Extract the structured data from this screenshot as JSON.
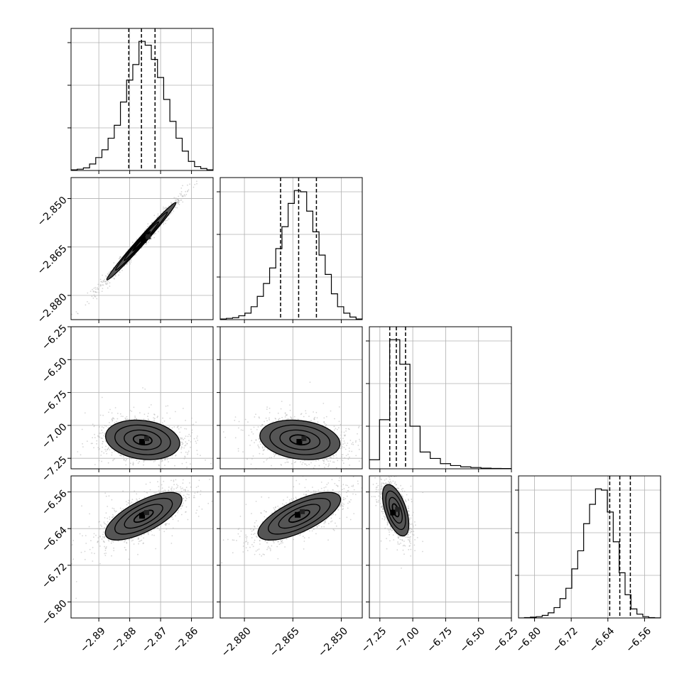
{
  "chart_data": {
    "type": "corner",
    "params": [
      {
        "range": [
          -2.899,
          -2.853
        ],
        "ticks": [
          -2.89,
          -2.88,
          -2.87,
          -2.86
        ],
        "tick_labels": [
          "−2.89",
          "−2.88",
          "−2.87",
          "−2.86"
        ],
        "quantiles": [
          -2.8803,
          -2.8762,
          -2.8718
        ],
        "hist": [
          0.5,
          1,
          2,
          5,
          10,
          16,
          25,
          35,
          53,
          70,
          82,
          100,
          97,
          86,
          72,
          55,
          38,
          25,
          15,
          7,
          3,
          1.5,
          0.5
        ]
      },
      {
        "range": [
          -2.8875,
          -2.8435
        ],
        "ticks": [
          -2.88,
          -2.865,
          -2.85
        ],
        "tick_labels": [
          "−2.880",
          "−2.865",
          "−2.850"
        ],
        "quantiles": [
          -2.8688,
          -2.8632,
          -2.8577
        ],
        "hist": [
          0.5,
          1,
          1.5,
          3,
          5,
          10,
          18,
          28,
          40,
          55,
          72,
          90,
          100,
          99,
          84,
          68,
          50,
          35,
          20,
          10,
          5,
          2,
          0.5
        ]
      },
      {
        "range": [
          -7.33,
          -6.25
        ],
        "ticks": [
          -7.25,
          -7.0,
          -6.75,
          -6.5,
          -6.25
        ],
        "tick_labels": [
          "−7.25",
          "−7.00",
          "−6.75",
          "−6.50",
          "−6.25"
        ],
        "quantiles": [
          -7.175,
          -7.125,
          -7.055
        ],
        "hist": [
          7,
          38,
          100,
          81,
          33,
          13,
          8,
          4,
          2.5,
          1.5,
          1,
          0.5,
          0.3,
          0.2
        ]
      },
      {
        "range": [
          -6.835,
          -6.525
        ],
        "ticks": [
          -6.8,
          -6.72,
          -6.64,
          -6.56
        ],
        "tick_labels": [
          "−6.80",
          "−6.72",
          "−6.64",
          "−6.56"
        ],
        "quantiles": [
          -6.636,
          -6.614,
          -6.591
        ],
        "hist": [
          0,
          0.3,
          0.6,
          1,
          2,
          4,
          8,
          15,
          23,
          38,
          52,
          73,
          88,
          100,
          99,
          82,
          59,
          35,
          18,
          7,
          3,
          1,
          0.3,
          0.1
        ]
      }
    ],
    "y_ticks": {
      "1": [
        -2.85,
        -2.865,
        -2.88
      ],
      "2": [
        -6.25,
        -6.5,
        -6.75,
        -7.0,
        -7.25
      ],
      "3": [
        -6.56,
        -6.64,
        -6.72,
        -6.8
      ]
    },
    "y_tick_labels": {
      "1": [
        "−2.850",
        "−2.865",
        "−2.880"
      ],
      "2": [
        "−6.25",
        "−6.50",
        "−6.75",
        "−7.00",
        "−7.25"
      ],
      "3": [
        "−6.56",
        "−6.64",
        "−6.72",
        "−6.80"
      ]
    },
    "pairs": [
      {
        "row": 1,
        "col": 0,
        "mean": [
          -2.8762,
          -2.8632
        ],
        "sd": [
          0.0056,
          0.006
        ],
        "rho": 0.99,
        "peak": [
          -2.8755,
          -2.8628
        ]
      },
      {
        "row": 2,
        "col": 0,
        "mean": [
          -2.8758,
          -7.11
        ],
        "sd": [
          0.006,
          0.075
        ],
        "rho": -0.18,
        "peak": [
          -2.876,
          -7.125
        ]
      },
      {
        "row": 2,
        "col": 1,
        "mean": [
          -2.8628,
          -7.11
        ],
        "sd": [
          0.0062,
          0.075
        ],
        "rho": -0.2,
        "peak": [
          -2.863,
          -7.125
        ]
      },
      {
        "row": 3,
        "col": 0,
        "mean": [
          -2.8755,
          -6.613
        ],
        "sd": [
          0.0062,
          0.026
        ],
        "rho": 0.7,
        "peak": [
          -2.876,
          -6.612
        ]
      },
      {
        "row": 3,
        "col": 1,
        "mean": [
          -2.863,
          -6.613
        ],
        "sd": [
          0.0064,
          0.026
        ],
        "rho": 0.7,
        "peak": [
          -2.8635,
          -6.61
        ]
      },
      {
        "row": 3,
        "col": 2,
        "mean": [
          -7.13,
          -6.6
        ],
        "sd": [
          0.05,
          0.028
        ],
        "rho": -0.55,
        "peak": [
          -7.15,
          -6.605
        ]
      }
    ],
    "contour_levels": [
      0.118,
      0.393,
      0.675,
      0.865
    ],
    "grid": true,
    "line_color": "#000000",
    "point_color": "#b4b4b4",
    "grid_color": "#b0b0b0"
  }
}
